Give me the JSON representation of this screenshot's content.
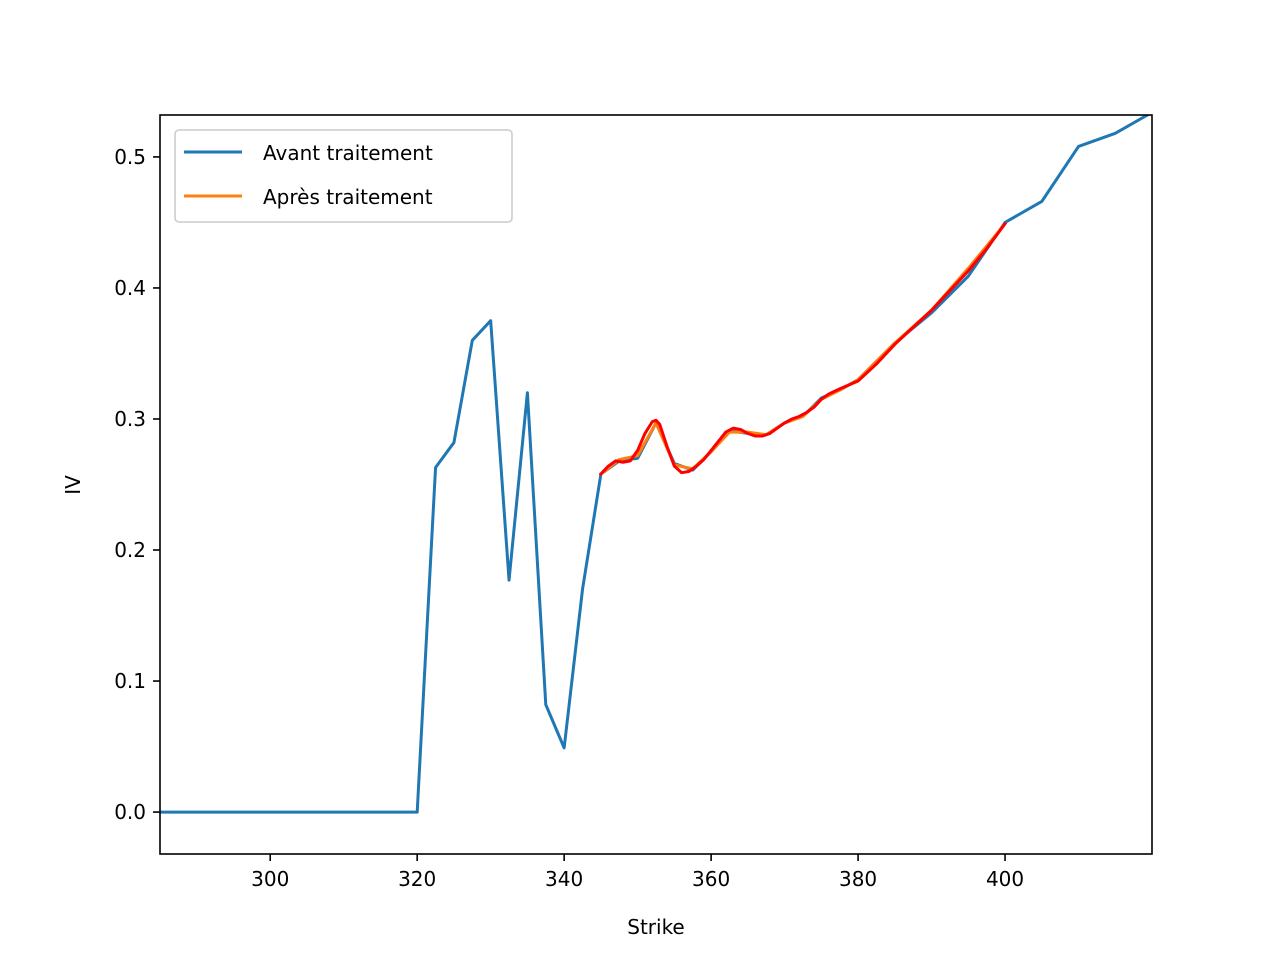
{
  "chart_data": {
    "type": "line",
    "title": "",
    "xlabel": "Strike",
    "ylabel": "IV",
    "xlim": [
      285,
      420
    ],
    "ylim": [
      -0.032,
      0.532
    ],
    "xticks": [
      300,
      320,
      340,
      360,
      380,
      400
    ],
    "yticks": [
      0.0,
      0.1,
      0.2,
      0.3,
      0.4,
      0.5
    ],
    "xtick_labels": [
      "300",
      "320",
      "340",
      "360",
      "380",
      "400"
    ],
    "ytick_labels": [
      "0.0",
      "0.1",
      "0.2",
      "0.3",
      "0.4",
      "0.5"
    ],
    "grid": false,
    "legend_position": "top-left",
    "series": [
      {
        "name": "Avant traitement",
        "color": "#1f77b4",
        "x": [
          285,
          290,
          295,
          300,
          305,
          310,
          315,
          320,
          322.5,
          325,
          327.5,
          330,
          332.5,
          335,
          337.5,
          340,
          342.5,
          345,
          347.5,
          350,
          352.5,
          355,
          357.5,
          360,
          362.5,
          365,
          367.5,
          370,
          372.5,
          375,
          377.5,
          380,
          385,
          390,
          395,
          400,
          405,
          410,
          415,
          420
        ],
        "y": [
          0.0,
          0.0,
          0.0,
          0.0,
          0.0,
          0.0,
          0.0,
          0.0,
          0.263,
          0.282,
          0.36,
          0.375,
          0.177,
          0.32,
          0.082,
          0.049,
          0.17,
          0.258,
          0.268,
          0.27,
          0.297,
          0.266,
          0.261,
          0.275,
          0.291,
          0.289,
          0.288,
          0.297,
          0.302,
          0.316,
          0.322,
          0.33,
          0.358,
          0.381,
          0.409,
          0.45,
          0.466,
          0.508,
          0.518,
          0.534
        ]
      },
      {
        "name": "Après traitement",
        "color": "#ff7f0e",
        "x": [
          345,
          347.5,
          350,
          352.5,
          355,
          357.5,
          360,
          362.5,
          365,
          367.5,
          370,
          372.5,
          375,
          377.5,
          380,
          385,
          390,
          395,
          400
        ],
        "y": [
          0.258,
          0.269,
          0.272,
          0.297,
          0.265,
          0.262,
          0.275,
          0.29,
          0.29,
          0.288,
          0.297,
          0.302,
          0.315,
          0.322,
          0.33,
          0.358,
          0.383,
          0.415,
          0.449
        ]
      },
      {
        "color": "#ff0000",
        "x": [
          345,
          346,
          347,
          348,
          349,
          350,
          351,
          352,
          352.5,
          353,
          354,
          355,
          356,
          357,
          358,
          359,
          360,
          361,
          362,
          363,
          364,
          365,
          366,
          367,
          368,
          369,
          370,
          371,
          372,
          373,
          374,
          375,
          376,
          377.5,
          380,
          382.5,
          385,
          387.5,
          390,
          392.5,
          395,
          397.5,
          400
        ],
        "y": [
          0.258,
          0.264,
          0.268,
          0.267,
          0.268,
          0.276,
          0.289,
          0.298,
          0.299,
          0.296,
          0.279,
          0.264,
          0.259,
          0.26,
          0.264,
          0.269,
          0.276,
          0.283,
          0.29,
          0.293,
          0.292,
          0.289,
          0.287,
          0.287,
          0.289,
          0.293,
          0.297,
          0.3,
          0.302,
          0.305,
          0.309,
          0.315,
          0.319,
          0.323,
          0.329,
          0.342,
          0.357,
          0.37,
          0.383,
          0.398,
          0.413,
          0.43,
          0.449
        ]
      }
    ]
  }
}
